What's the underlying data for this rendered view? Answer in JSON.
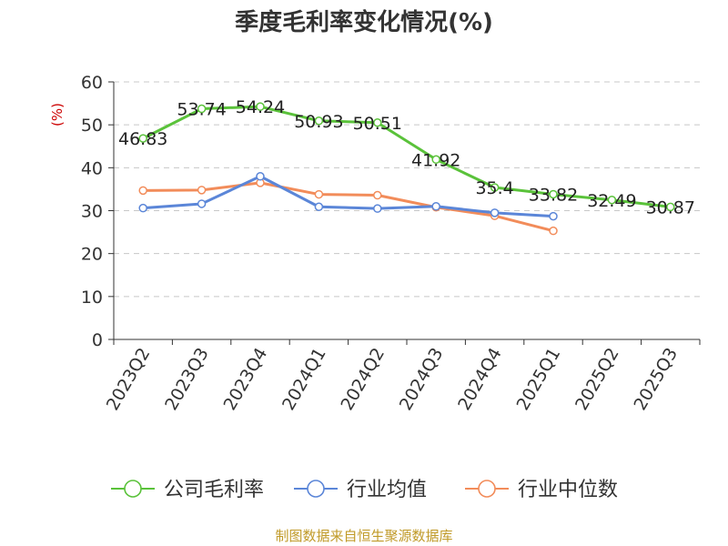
{
  "chart_data": {
    "type": "line",
    "title": "季度毛利率变化情况(%)",
    "ylabel": "(%)",
    "xlabel": "",
    "ylim": [
      0,
      60
    ],
    "yticks": [
      0,
      10,
      20,
      30,
      40,
      50,
      60
    ],
    "grid": true,
    "legend_position": "bottom",
    "categories": [
      "2023Q2",
      "2023Q3",
      "2023Q4",
      "2024Q1",
      "2024Q2",
      "2024Q3",
      "2024Q4",
      "2025Q1",
      "2025Q2",
      "2025Q3"
    ],
    "series": [
      {
        "name": "公司毛利率",
        "color": "#5ac23a",
        "values": [
          46.83,
          53.74,
          54.24,
          50.93,
          50.51,
          41.92,
          35.4,
          33.82,
          32.49,
          30.87
        ],
        "data_labels": [
          "46.83",
          "53.74",
          "54.24",
          "50.93",
          "50.51",
          "41.92",
          "35.4",
          "33.82",
          "32.49",
          "30.87"
        ]
      },
      {
        "name": "行业均值",
        "color": "#5b86d8",
        "values": [
          30.6,
          31.6,
          38.0,
          30.9,
          30.5,
          31.0,
          29.5,
          28.7,
          null,
          null
        ]
      },
      {
        "name": "行业中位数",
        "color": "#f28c5a",
        "values": [
          34.7,
          34.8,
          36.5,
          33.8,
          33.6,
          30.8,
          28.8,
          25.3,
          null,
          null
        ]
      }
    ]
  },
  "footer": {
    "source": "制图数据来自恒生聚源数据库"
  }
}
